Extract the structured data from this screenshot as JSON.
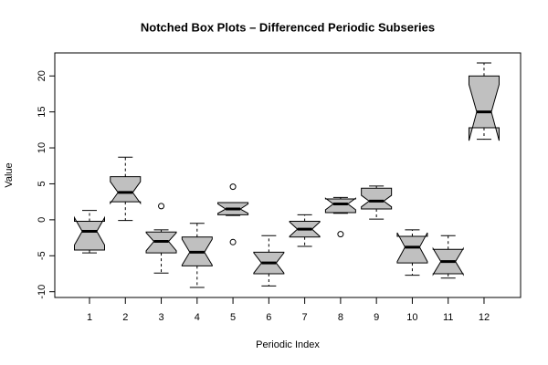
{
  "chart_data": {
    "type": "boxplot",
    "title": "Notched Box Plots – Differenced Periodic Subseries",
    "x_label": "Periodic Index",
    "y_label": "Value",
    "categories": [
      "1",
      "2",
      "3",
      "4",
      "5",
      "6",
      "7",
      "8",
      "9",
      "10",
      "11",
      "12"
    ],
    "color": "#c0c0c0",
    "ylim": [
      -10.8,
      23.2
    ],
    "yticks": [
      -10,
      -5,
      0,
      5,
      10,
      15,
      20
    ],
    "boxes": [
      {
        "low": -4.6,
        "q1": -4.2,
        "median": -1.6,
        "q3": -0.2,
        "high": 1.3,
        "notch": [
          -3.5,
          0.3
        ],
        "outliers": []
      },
      {
        "low": -0.1,
        "q1": 2.5,
        "median": 3.8,
        "q3": 6.0,
        "high": 8.7,
        "notch": [
          2.3,
          5.3
        ],
        "outliers": []
      },
      {
        "low": -7.4,
        "q1": -4.6,
        "median": -3.0,
        "q3": -1.7,
        "high": -1.4,
        "notch": [
          -4.3,
          -1.8
        ],
        "outliers": [
          1.9
        ]
      },
      {
        "low": -9.4,
        "q1": -6.4,
        "median": -4.5,
        "q3": -2.4,
        "high": -0.5,
        "notch": [
          -6.3,
          -2.7
        ],
        "outliers": []
      },
      {
        "low": 0.6,
        "q1": 0.7,
        "median": 1.5,
        "q3": 2.4,
        "high": 2.4,
        "notch": [
          0.9,
          2.2
        ],
        "outliers": [
          4.6,
          -3.1
        ]
      },
      {
        "low": -9.2,
        "q1": -7.5,
        "median": -6.0,
        "q3": -4.5,
        "high": -2.2,
        "notch": [
          -7.4,
          -4.6
        ],
        "outliers": []
      },
      {
        "low": -3.7,
        "q1": -2.4,
        "median": -1.3,
        "q3": -0.2,
        "high": 0.7,
        "notch": [
          -2.3,
          -0.3
        ],
        "outliers": []
      },
      {
        "low": 0.9,
        "q1": 1.0,
        "median": 2.2,
        "q3": 2.9,
        "high": 3.1,
        "notch": [
          1.4,
          3.0
        ],
        "outliers": [
          -2.0
        ]
      },
      {
        "low": 0.1,
        "q1": 1.5,
        "median": 2.6,
        "q3": 4.4,
        "high": 4.7,
        "notch": [
          1.8,
          3.4
        ],
        "outliers": []
      },
      {
        "low": -7.7,
        "q1": -6.0,
        "median": -3.8,
        "q3": -2.3,
        "high": -1.4,
        "notch": [
          -5.8,
          -1.8
        ],
        "outliers": []
      },
      {
        "low": -8.1,
        "q1": -7.5,
        "median": -5.8,
        "q3": -4.1,
        "high": -2.2,
        "notch": [
          -7.6,
          -4.0
        ],
        "outliers": []
      },
      {
        "low": 11.2,
        "q1": 12.8,
        "median": 15.0,
        "q3": 20.0,
        "high": 21.8,
        "notch": [
          11.0,
          18.8
        ],
        "outliers": []
      }
    ]
  }
}
